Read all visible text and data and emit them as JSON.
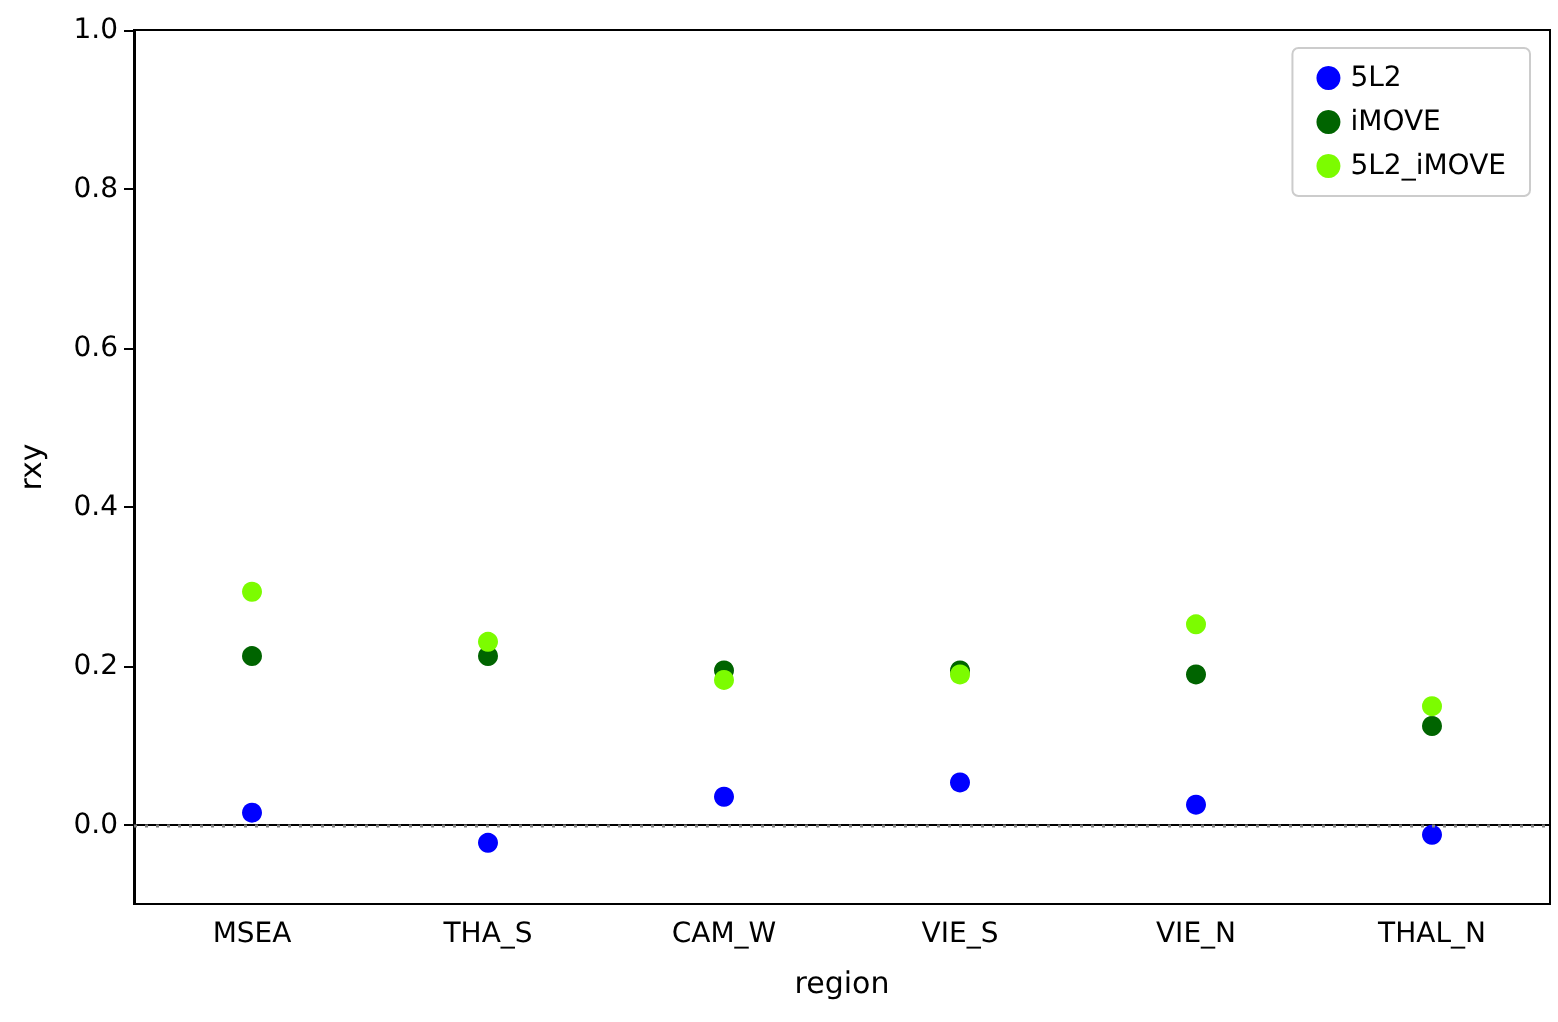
{
  "chart_data": {
    "type": "scatter",
    "xlabel": "region",
    "ylabel": "rxy",
    "categories": [
      "MSEA",
      "THA_S",
      "CAM_W",
      "VIE_S",
      "VIE_N",
      "THAL_N"
    ],
    "series": [
      {
        "name": "5L2",
        "color": "#0000ff",
        "values": [
          0.015,
          -0.023,
          0.035,
          0.053,
          0.025,
          -0.013
        ]
      },
      {
        "name": "iMOVE",
        "color": "#006400",
        "values": [
          0.212,
          0.212,
          0.194,
          0.194,
          0.189,
          0.124
        ]
      },
      {
        "name": "5L2_iMOVE",
        "color": "#7cfc00",
        "values": [
          0.293,
          0.23,
          0.182,
          0.189,
          0.252,
          0.149
        ]
      }
    ],
    "ylim": [
      -0.1,
      1.0
    ],
    "yticks": [
      {
        "value": 0,
        "label": "0.0"
      },
      {
        "value": 0.2,
        "label": "0.2"
      },
      {
        "value": 0.4,
        "label": "0.4"
      },
      {
        "value": 0.6,
        "label": "0.6"
      },
      {
        "value": 0.8,
        "label": "0.8"
      },
      {
        "value": 1,
        "label": "1.0"
      }
    ],
    "ref_lines": [
      {
        "axis": "y",
        "value": 0,
        "color": "#808080",
        "line_style": "dotted"
      }
    ],
    "grid": false,
    "legend": "top right",
    "marker": "circle"
  }
}
